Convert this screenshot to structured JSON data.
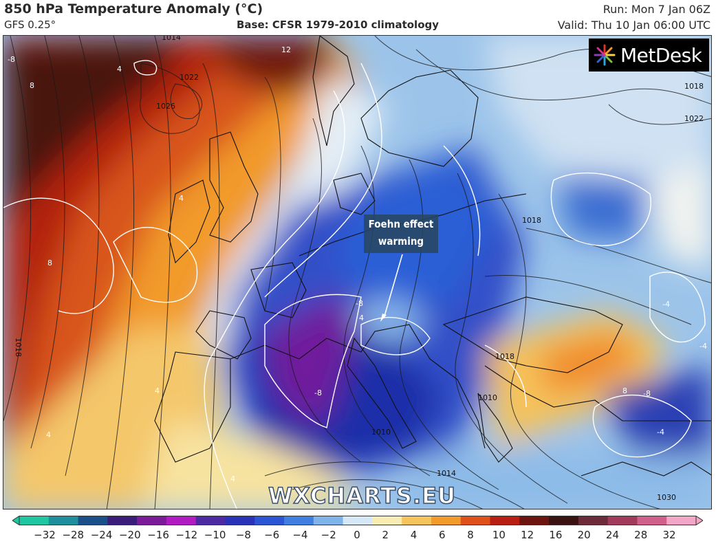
{
  "header": {
    "title": "850 hPa Temperature Anomaly (°C)",
    "model": "GFS 0.25°",
    "base": "Base: CFSR 1979-2010 climatology",
    "run": "Run: Mon 7 Jan 06Z",
    "valid": "Valid: Thu 10 Jan 06:00 UTC"
  },
  "logo": {
    "text": "MetDesk",
    "icon": "metdesk-starburst-icon"
  },
  "annotation": {
    "line1": "Foehn effect",
    "line2": "warming"
  },
  "watermark": "WXCHARTS.EU",
  "isobar_labels": [
    "1014",
    "1022",
    "1026",
    "1018",
    "1018",
    "1022",
    "1018",
    "1014",
    "1010",
    "1030",
    "1018",
    "1010"
  ],
  "anomaly_labels": [
    "-8",
    "8",
    "4",
    "8",
    "-8",
    "-8",
    "4",
    "4",
    "4",
    "8",
    "-4",
    "12",
    "4",
    "-4",
    "4",
    "-8",
    "-4"
  ],
  "colorbar": {
    "ticks": [
      "−32",
      "−28",
      "−24",
      "−20",
      "−16",
      "−12",
      "−10",
      "−8",
      "−6",
      "−4",
      "−2",
      "0",
      "2",
      "4",
      "6",
      "8",
      "10",
      "12",
      "16",
      "20",
      "24",
      "28",
      "32"
    ],
    "colors": [
      "#1fc7a0",
      "#1f8f9d",
      "#1a4f8a",
      "#3a1d7a",
      "#7a1c9a",
      "#b11bc2",
      "#4c2aa4",
      "#2a32b8",
      "#2c55d4",
      "#3f7fe0",
      "#7fb3ea",
      "#d6e8f5",
      "#f8ecb5",
      "#f6c45a",
      "#f29a2c",
      "#e0501a",
      "#b81e12",
      "#6e1410",
      "#3b1212",
      "#6c2a3a",
      "#a23a5c",
      "#d0608a",
      "#f4a6c6"
    ]
  },
  "colors": {
    "cold_core": "#6f1a9c",
    "cold": "#2637b8",
    "cool": "#5f9be0",
    "warm": "#f39a2e",
    "hot": "#c23a12",
    "very_hot": "#3a1510"
  }
}
